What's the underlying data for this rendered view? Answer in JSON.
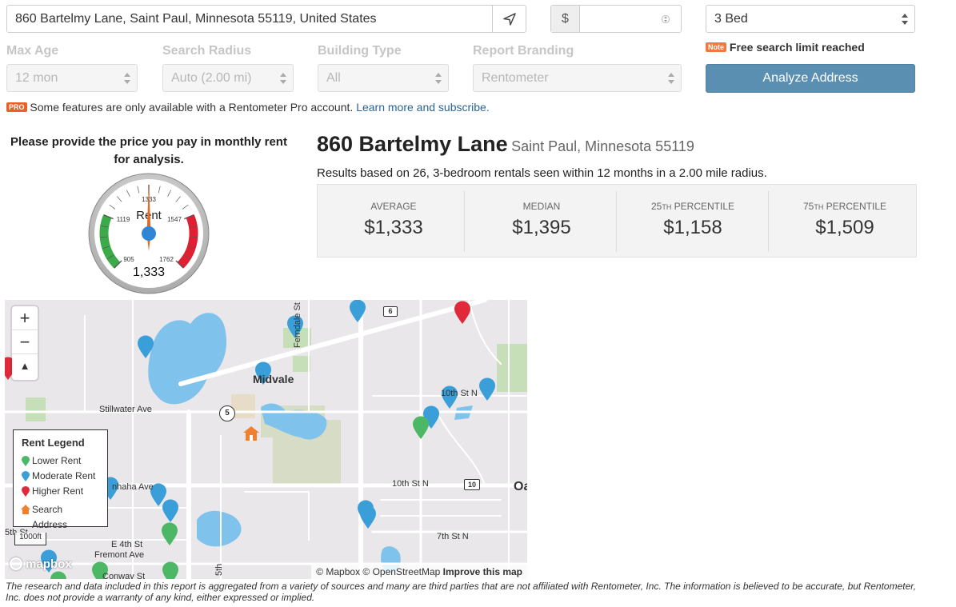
{
  "search": {
    "address": "860 Bartelmy Lane, Saint Paul, Minnesota 55119, United States",
    "currency_symbol": "$",
    "rent_value": "",
    "bedrooms": "3 Bed"
  },
  "filters": {
    "max_age_label": "Max Age",
    "max_age_value": "12 mon",
    "radius_label": "Search Radius",
    "radius_value": "Auto (2.00 mi)",
    "building_label": "Building Type",
    "building_value": "All",
    "branding_label": "Report Branding",
    "branding_value": "Rentometer"
  },
  "note": {
    "badge": "Note",
    "text": "Free search limit reached"
  },
  "analyze_label": "Analyze Address",
  "pro": {
    "badge": "PRO",
    "text": "Some features are only available with a Rentometer Pro account.",
    "link": "Learn more and subscribe."
  },
  "gauge": {
    "prompt": "Please provide the price you pay in monthly rent for analysis.",
    "label": "Rent",
    "value": "1,333",
    "needle_fraction": 0.5,
    "ticks": [
      "905",
      "1119",
      "1333",
      "1547",
      "1762"
    ]
  },
  "result": {
    "street": "860 Bartelmy Lane",
    "city": "Saint Paul, Minnesota 55119",
    "summary": "Results based on 26, 3-bedroom rentals seen within 12 months in a 2.00 mile radius."
  },
  "stats": [
    {
      "label": "AVERAGE",
      "sup": "",
      "value": "$1,333"
    },
    {
      "label": "MEDIAN",
      "sup": "",
      "value": "$1,395"
    },
    {
      "label": "25",
      "sup": "TH",
      "label_rest": " PERCENTILE",
      "value": "$1,158"
    },
    {
      "label": "75",
      "sup": "TH",
      "label_rest": " PERCENTILE",
      "value": "$1,509"
    }
  ],
  "map": {
    "legend_title": "Rent Legend",
    "legend_lower": "Lower Rent",
    "legend_moderate": "Moderate Rent",
    "legend_higher": "Higher Rent",
    "legend_search": "Search Address",
    "places": {
      "midvale": "Midvale",
      "stillwater": "Stillwater Ave",
      "ferndale": "Ferndale St",
      "st10n": "10th St N",
      "st10n_b": "10th St N",
      "st7n": "7th St N",
      "minnehaha": "nhaha Ave",
      "e4th": "E 4th St",
      "fremont": "Fremont Ave",
      "conway": "Conway St",
      "st5th": "5th St",
      "fifth": "5th",
      "oa": "Oa",
      "route6": "6",
      "route5": "5",
      "route10": "10"
    },
    "scale": "1000ft",
    "logo": "mapbox",
    "attribution_a": "© Mapbox © OpenStreetMap",
    "attribution_b": "Improve this map",
    "colors": {
      "lower": "#4cb865",
      "moderate": "#3a9fd9",
      "higher": "#e02a3b",
      "search": "#f08030"
    }
  },
  "disclaimer": "The research and data included in this report is aggregated from a variety of sources and many are third parties that are not affiliated with Rentometer, Inc. The information is believed to be accurate, but Rentometer, Inc. does not provide a warranty of any kind, either expressed or implied."
}
